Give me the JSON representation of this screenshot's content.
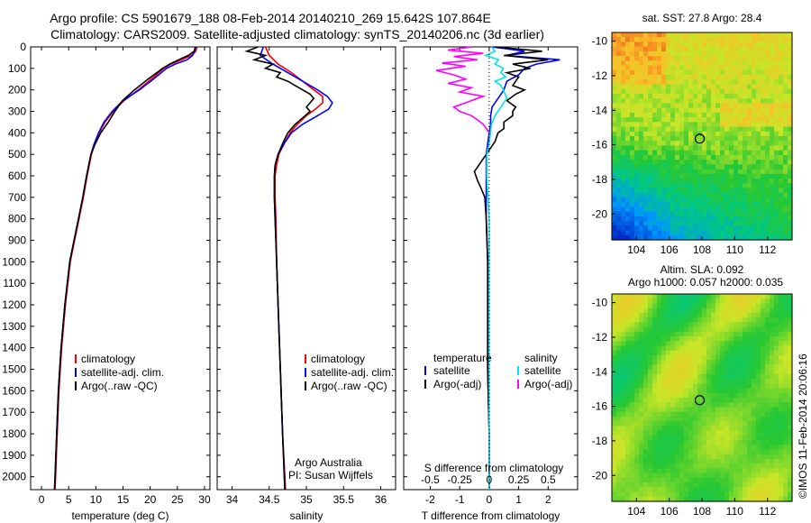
{
  "title": {
    "line1": "Argo profile: CS 5901679_188 08-Feb-2014 20140210_269 15.642S 107.864E",
    "line2": "Climatology: CARS2009. Satellite-adjusted climatology: synTS_20140206.nc (3d earlier)"
  },
  "colors": {
    "climatology": "#ff0000",
    "satellite": "#0000ff",
    "argo": "#000000",
    "sat_salinity": "#00e5e5",
    "argo_salinity": "#ff00ff"
  },
  "depth_ticks": [
    "0",
    "100",
    "200",
    "300",
    "400",
    "500",
    "600",
    "700",
    "800",
    "900",
    "1000",
    "1100",
    "1200",
    "1300",
    "1400",
    "1500",
    "1600",
    "1700",
    "1800",
    "1900",
    "2000"
  ],
  "chart_data": [
    {
      "type": "line",
      "id": "temperature",
      "xlabel": "temperature (deg C)",
      "ylabel": "depth",
      "xlim": [
        -2,
        31
      ],
      "ylim": [
        2060,
        0
      ],
      "xticks": [
        "0",
        "5",
        "10",
        "15",
        "20",
        "25",
        "30"
      ],
      "xtick_values": [
        0,
        5,
        10,
        15,
        20,
        25,
        30
      ],
      "legend": [
        "climatology",
        "satellite-adj. clim.",
        "Argo(..raw -QC)"
      ],
      "series": [
        {
          "name": "climatology",
          "color": "climatology",
          "depth": [
            0,
            20,
            40,
            60,
            80,
            100,
            150,
            200,
            250,
            300,
            350,
            400,
            450,
            500,
            600,
            700,
            800,
            900,
            1000,
            1200,
            1400,
            1600,
            1800,
            2000,
            2060
          ],
          "values": [
            28.6,
            28.4,
            27.6,
            25.8,
            23.8,
            22.5,
            20.2,
            17.8,
            15.2,
            13.2,
            11.7,
            10.6,
            9.8,
            9.2,
            8.4,
            7.7,
            6.9,
            6.1,
            5.3,
            4.4,
            3.7,
            3.2,
            2.9,
            2.6,
            2.5
          ]
        },
        {
          "name": "satellite-adj. clim.",
          "color": "satellite",
          "depth": [
            0,
            20,
            40,
            60,
            80,
            100,
            150,
            200,
            250,
            300,
            350,
            400,
            450,
            500,
            600,
            700,
            800,
            900,
            1000,
            1200,
            1400,
            1600,
            1800,
            2000,
            2060
          ],
          "values": [
            28.4,
            28.2,
            27.8,
            26.8,
            24.6,
            23.0,
            20.6,
            18.0,
            15.0,
            13.0,
            11.5,
            10.5,
            9.7,
            9.1,
            8.3,
            7.6,
            6.8,
            6.0,
            5.2,
            4.3,
            3.6,
            3.1,
            2.8,
            2.5,
            2.4
          ]
        },
        {
          "name": "Argo(..raw -QC)",
          "color": "argo",
          "depth": [
            0,
            20,
            40,
            60,
            80,
            100,
            150,
            200,
            250,
            300,
            350,
            400,
            450,
            500,
            600,
            700,
            800,
            900,
            1000,
            1200,
            1400,
            1600,
            1800,
            2000,
            2060
          ],
          "values": [
            28.3,
            28.1,
            27.0,
            25.2,
            23.6,
            22.3,
            19.6,
            17.1,
            14.9,
            13.5,
            12.3,
            10.9,
            9.9,
            9.1,
            8.3,
            7.6,
            6.8,
            6.0,
            5.2,
            4.3,
            3.6,
            3.1,
            2.8,
            2.5,
            2.4
          ]
        }
      ]
    },
    {
      "type": "line",
      "id": "salinity",
      "xlabel": "salinity",
      "xlim": [
        33.8,
        36.2
      ],
      "ylim": [
        2060,
        0
      ],
      "xticks": [
        "34",
        "34.5",
        "35",
        "35.5",
        "36"
      ],
      "xtick_values": [
        34,
        34.5,
        35,
        35.5,
        36
      ],
      "legend": [
        "climatology",
        "satellite-adj. clim.",
        "Argo(..raw -QC)"
      ],
      "annotation": [
        "Argo Australia",
        "PI: Susan Wijffels"
      ],
      "series": [
        {
          "name": "climatology",
          "color": "climatology",
          "depth": [
            0,
            40,
            80,
            120,
            160,
            200,
            230,
            260,
            290,
            320,
            360,
            400,
            450,
            500,
            550,
            600,
            700,
            800,
            1000,
            1200,
            1500,
            1800,
            2060
          ],
          "values": [
            34.45,
            34.5,
            34.62,
            34.8,
            34.95,
            35.1,
            35.22,
            35.22,
            35.12,
            35.0,
            34.88,
            34.78,
            34.7,
            34.63,
            34.6,
            34.58,
            34.58,
            34.59,
            34.6,
            34.62,
            34.65,
            34.68,
            34.72
          ]
        },
        {
          "name": "satellite-adj. clim.",
          "color": "satellite",
          "depth": [
            0,
            40,
            80,
            120,
            160,
            200,
            230,
            260,
            290,
            320,
            360,
            400,
            450,
            500,
            550,
            600,
            700,
            800,
            1000,
            1200,
            1500,
            1800,
            2060
          ],
          "values": [
            34.42,
            34.38,
            34.55,
            34.75,
            34.95,
            35.15,
            35.28,
            35.35,
            35.3,
            35.15,
            34.95,
            34.8,
            34.7,
            34.62,
            34.58,
            34.57,
            34.57,
            34.58,
            34.6,
            34.62,
            34.65,
            34.68,
            34.71
          ]
        },
        {
          "name": "Argo(..raw -QC)",
          "color": "argo",
          "depth": [
            0,
            20,
            40,
            60,
            80,
            100,
            120,
            140,
            160,
            180,
            200,
            220,
            240,
            260,
            280,
            300,
            330,
            360,
            400,
            450,
            500,
            550,
            600,
            700,
            800,
            1000,
            1200,
            1500,
            1800,
            2060
          ],
          "values": [
            34.35,
            34.2,
            34.45,
            34.3,
            34.55,
            34.45,
            34.65,
            34.6,
            34.75,
            34.85,
            34.95,
            35.05,
            35.1,
            35.05,
            35.0,
            35.05,
            34.95,
            34.85,
            34.75,
            34.68,
            34.62,
            34.58,
            34.57,
            34.57,
            34.58,
            34.6,
            34.62,
            34.65,
            34.68,
            34.71
          ]
        }
      ]
    },
    {
      "type": "line",
      "id": "differences",
      "xlabel": "T difference from climatology",
      "xlabel_top": "S difference from climatology",
      "xlim": [
        -2.9,
        3.0
      ],
      "ylim": [
        2060,
        0
      ],
      "xticks_bottom": [
        "-2",
        "-1",
        "0",
        "1",
        "2"
      ],
      "xtick_values_bottom": [
        -2,
        -1,
        0,
        1,
        2
      ],
      "xticks_top": [
        "-0.5",
        "-0.25",
        "0",
        "0.25",
        "0.5"
      ],
      "xtick_values_top": [
        -0.5,
        -0.25,
        0,
        0.25,
        0.5
      ],
      "legend_temperature": {
        "heading": "temperature",
        "items": [
          "satellite",
          "Argo(-adj)"
        ]
      },
      "legend_salinity": {
        "heading": "salinity",
        "items": [
          "satellite",
          "Argo(-adj)"
        ]
      },
      "series": [
        {
          "name": "temperature satellite",
          "color": "satellite",
          "unit": "T",
          "depth": [
            0,
            20,
            40,
            60,
            80,
            100,
            130,
            160,
            200,
            240,
            280,
            320,
            360,
            400,
            450,
            500,
            600,
            700,
            800,
            1000,
            1200,
            1500,
            1800,
            2060
          ],
          "values": [
            0.1,
            1.2,
            0.6,
            2.4,
            1.6,
            1.2,
            1.0,
            0.6,
            0.5,
            0.3,
            0.1,
            0.05,
            0.05,
            0.0,
            -0.05,
            -0.1,
            -0.1,
            -0.1,
            -0.1,
            -0.05,
            -0.05,
            -0.05,
            0.0,
            0.0
          ]
        },
        {
          "name": "temperature Argo(-adj)",
          "color": "argo",
          "unit": "T",
          "depth": [
            0,
            20,
            40,
            60,
            80,
            100,
            120,
            140,
            160,
            180,
            200,
            220,
            250,
            280,
            300,
            320,
            350,
            380,
            400,
            440,
            480,
            500,
            540,
            580,
            620,
            650,
            700,
            800,
            1000,
            1200,
            1500,
            1800,
            2060
          ],
          "values": [
            0.2,
            1.8,
            0.5,
            2.0,
            0.8,
            1.4,
            0.6,
            1.0,
            0.9,
            0.8,
            1.2,
            0.9,
            0.6,
            0.9,
            0.8,
            0.8,
            0.5,
            0.5,
            0.3,
            0.2,
            0.0,
            -0.1,
            -0.3,
            -0.5,
            -0.4,
            -0.3,
            -0.15,
            -0.1,
            -0.05,
            -0.05,
            -0.05,
            0.0,
            0.0
          ]
        },
        {
          "name": "salinity satellite",
          "color": "sat_salinity",
          "unit": "S",
          "depth": [
            0,
            20,
            40,
            60,
            80,
            100,
            120,
            140,
            160,
            180,
            200,
            240,
            280,
            320,
            360,
            400,
            450,
            500,
            600,
            700,
            800,
            1000,
            1200,
            1500,
            1800,
            2060
          ],
          "values": [
            0.02,
            0.05,
            -0.03,
            0.08,
            0.05,
            0.12,
            0.1,
            0.14,
            0.05,
            0.1,
            0.12,
            0.15,
            0.1,
            0.05,
            0.02,
            0.01,
            0.0,
            -0.02,
            -0.02,
            -0.01,
            0.0,
            0.0,
            0.0,
            0.0,
            0.0,
            0.0
          ]
        },
        {
          "name": "salinity Argo(-adj)",
          "color": "argo_salinity",
          "unit": "S",
          "depth": [
            0,
            15,
            30,
            45,
            60,
            75,
            90,
            110,
            130,
            150,
            170,
            190,
            210,
            230,
            260,
            280,
            300,
            320,
            340,
            360,
            400
          ],
          "values": [
            -0.15,
            -0.35,
            -0.05,
            -0.3,
            -0.1,
            -0.4,
            -0.2,
            -0.45,
            -0.3,
            -0.2,
            -0.35,
            -0.15,
            -0.25,
            -0.05,
            -0.2,
            -0.3,
            -0.25,
            -0.15,
            -0.1,
            -0.05,
            0.0
          ]
        }
      ]
    },
    {
      "type": "heatmap",
      "id": "sst_map",
      "title": "sat. SST: 27.8  Argo: 28.4",
      "xlim": [
        102.5,
        113.5
      ],
      "ylim": [
        -21.5,
        -9.5
      ],
      "xticks": [
        "104",
        "106",
        "108",
        "110",
        "112"
      ],
      "xtick_values": [
        104,
        106,
        108,
        110,
        112
      ],
      "yticks": [
        "-10",
        "-12",
        "-14",
        "-16",
        "-18",
        "-20"
      ],
      "ytick_values": [
        -10,
        -12,
        -14,
        -16,
        -18,
        -20
      ],
      "marker": {
        "lon": 107.864,
        "lat": -15.642
      }
    },
    {
      "type": "heatmap",
      "id": "sla_map",
      "title_line1": "Altim. SLA: 0.092",
      "title_line2": "Argo h1000: 0.057  h2000: 0.035",
      "xlim": [
        102.5,
        113.5
      ],
      "ylim": [
        -21.5,
        -9.5
      ],
      "xticks": [
        "104",
        "106",
        "108",
        "110",
        "112"
      ],
      "xtick_values": [
        104,
        106,
        108,
        110,
        112
      ],
      "yticks": [
        "-10",
        "-12",
        "-14",
        "-16",
        "-18",
        "-20"
      ],
      "ytick_values": [
        -10,
        -12,
        -14,
        -16,
        -18,
        -20
      ],
      "marker": {
        "lon": 107.864,
        "lat": -15.642
      }
    }
  ],
  "credit": "©IMOS 11-Feb-2014 20:06:16"
}
